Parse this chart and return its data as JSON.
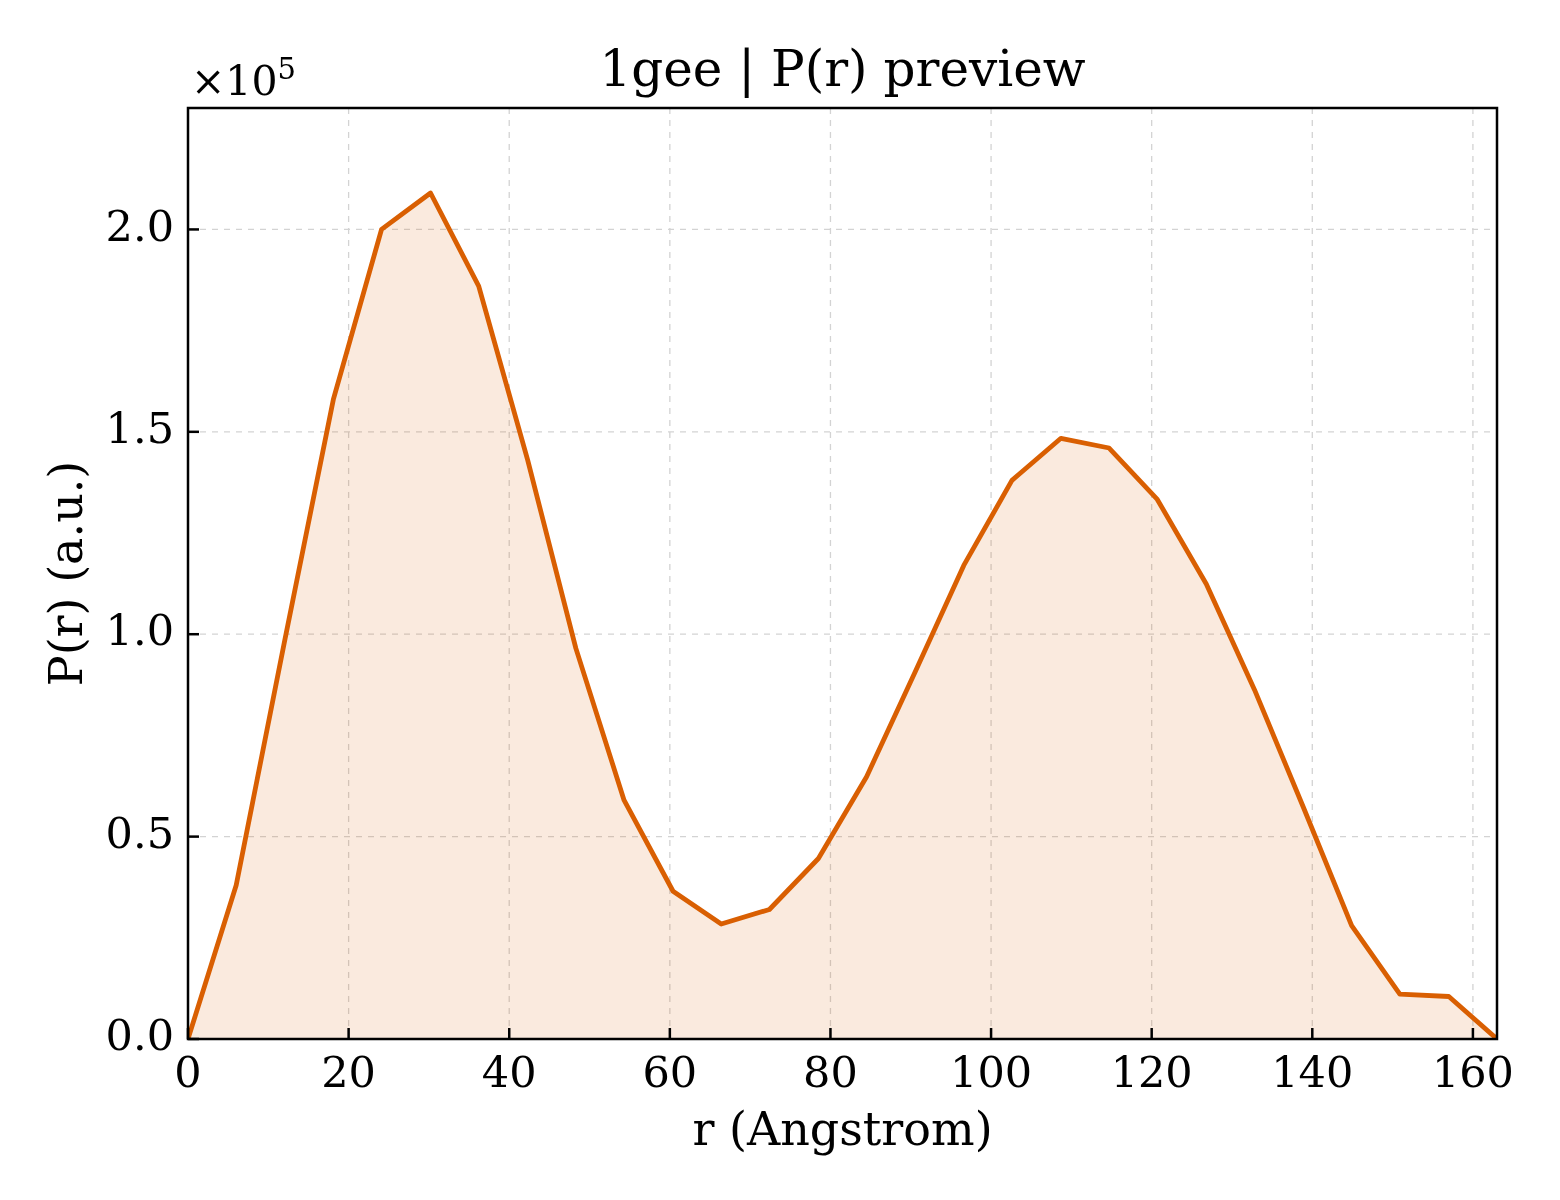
{
  "chart_data": {
    "type": "area",
    "title": "1gee | P(r) preview",
    "xlabel": "r (Angstrom)",
    "ylabel": "P(r) (a.u.)",
    "annotations": [
      "×10$^{5}$"
    ],
    "x": [
      0,
      6.0,
      12.1,
      18.1,
      24.1,
      30.2,
      36.2,
      42.3,
      48.3,
      54.3,
      60.4,
      66.4,
      72.4,
      78.5,
      84.5,
      90.6,
      96.6,
      102.6,
      108.7,
      114.7,
      120.7,
      126.8,
      132.8,
      138.9,
      144.9,
      150.9,
      157.0,
      163.0
    ],
    "values": [
      0,
      0.38,
      0.99,
      1.58,
      2.0,
      2.09,
      1.86,
      1.43,
      0.965,
      0.59,
      0.365,
      0.284,
      0.32,
      0.446,
      0.648,
      0.909,
      1.17,
      1.38,
      1.484,
      1.46,
      1.333,
      1.124,
      0.863,
      0.572,
      0.28,
      0.111,
      0.105,
      0
    ],
    "color": "#d95f02",
    "xlim": [
      0,
      163
    ],
    "xticks": [
      0,
      20,
      40,
      60,
      80,
      100,
      120,
      140,
      160
    ],
    "ylim": [
      0,
      2.3
    ],
    "yticks": [
      {
        "value": 0,
        "label": "0.0"
      },
      0.5,
      {
        "value": 1,
        "label": "1.0"
      },
      1.5,
      {
        "value": 2,
        "label": "2.0"
      }
    ],
    "grid": true
  }
}
